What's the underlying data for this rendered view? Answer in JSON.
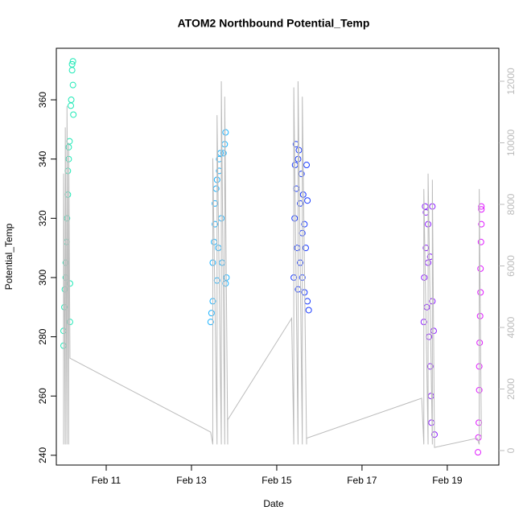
{
  "chart_data": {
    "type": "scatter",
    "title": "ATOM2 Northbound Potential_Temp",
    "x_label": "Date",
    "y_label": "Potential_Temp",
    "xlim": [
      9.83,
      20.21
    ],
    "xticks": [
      {
        "value": 11,
        "label": "Feb 11"
      },
      {
        "value": 13,
        "label": "Feb 13"
      },
      {
        "value": 15,
        "label": "Feb 15"
      },
      {
        "value": 17,
        "label": "Feb 17"
      },
      {
        "value": 19,
        "label": "Feb 19"
      }
    ],
    "ylim": [
      236.7,
      377.4
    ],
    "yticks": [
      240,
      260,
      280,
      300,
      320,
      340,
      360
    ],
    "y2lim": [
      -471,
      13072
    ],
    "y2ticks": [
      0,
      2000,
      4000,
      6000,
      8000,
      10000,
      12000
    ],
    "series": [
      {
        "color": "#1de9b6",
        "x": [
          10.0,
          10.0,
          10.02,
          10.03,
          10.05,
          10.05,
          10.07,
          10.08,
          10.1,
          10.1,
          10.12,
          10.12,
          10.14,
          10.15,
          10.15,
          10.17,
          10.18,
          10.2,
          10.2,
          10.22,
          10.22,
          10.23
        ],
        "values": [
          277,
          282,
          290,
          296,
          300,
          305,
          312,
          320,
          328,
          336,
          340,
          344,
          346,
          298,
          285,
          358,
          360,
          370,
          372,
          373,
          365,
          355
        ]
      },
      {
        "color": "#1ab2ff",
        "x": [
          13.45,
          13.47,
          13.5,
          13.5,
          13.53,
          13.55,
          13.55,
          13.58,
          13.6,
          13.6,
          13.63,
          13.65,
          13.65,
          13.68,
          13.7,
          13.72,
          13.75,
          13.78,
          13.8,
          13.8,
          13.82
        ],
        "values": [
          285,
          288,
          292,
          305,
          312,
          318,
          325,
          330,
          333,
          299,
          310,
          336,
          340,
          342,
          320,
          305,
          342,
          345,
          349,
          298,
          300
        ]
      },
      {
        "color": "#1a3cff",
        "x": [
          15.4,
          15.42,
          15.43,
          15.45,
          15.46,
          15.48,
          15.5,
          15.5,
          15.52,
          15.55,
          15.55,
          15.58,
          15.6,
          15.6,
          15.62,
          15.65,
          15.65,
          15.68,
          15.7,
          15.72,
          15.72,
          15.75
        ],
        "values": [
          300,
          320,
          338,
          345,
          330,
          310,
          296,
          340,
          343,
          325,
          305,
          335,
          315,
          300,
          328,
          318,
          295,
          310,
          338,
          326,
          292,
          289
        ]
      },
      {
        "color": "#8c1aff",
        "x": [
          18.45,
          18.46,
          18.48,
          18.5,
          18.5,
          18.52,
          18.55,
          18.55,
          18.57,
          18.6,
          18.6,
          18.62,
          18.63,
          18.65,
          18.65,
          18.68,
          18.7
        ],
        "values": [
          285,
          300,
          324,
          322,
          310,
          290,
          305,
          318,
          280,
          270,
          307,
          260,
          251,
          324,
          292,
          282,
          247
        ]
      },
      {
        "color": "#e01aff",
        "x": [
          19.72,
          19.73,
          19.74,
          19.75,
          19.75,
          19.76,
          19.77,
          19.78,
          19.78,
          19.79,
          19.8,
          19.8,
          19.8
        ],
        "values": [
          241,
          246,
          251,
          262,
          270,
          278,
          287,
          295,
          303,
          312,
          318,
          323,
          324
        ]
      },
      {
        "color": "#bbbbbb",
        "axis": "y2",
        "x": [
          10.0,
          10.0,
          10.04,
          10.04,
          10.08,
          10.08,
          10.12,
          10.12,
          10.15,
          10.15,
          13.45,
          13.5,
          13.5,
          13.6,
          13.6,
          13.7,
          13.7,
          13.78,
          13.78,
          13.85,
          13.85,
          15.35,
          15.4,
          15.4,
          15.5,
          15.5,
          15.6,
          15.6,
          15.7,
          15.7,
          18.4,
          18.45,
          18.45,
          18.55,
          18.55,
          18.65,
          18.65,
          18.7,
          19.7,
          19.75,
          19.75,
          19.8
        ],
        "values": [
          200,
          9000,
          200,
          10500,
          200,
          11200,
          200,
          10000,
          3000,
          3000,
          600,
          200,
          9500,
          200,
          10900,
          200,
          12000,
          200,
          11500,
          200,
          1000,
          4300,
          200,
          11800,
          200,
          12000,
          200,
          11500,
          200,
          400,
          1700,
          200,
          8500,
          200,
          9000,
          200,
          8800,
          100,
          400,
          200,
          8500,
          400
        ]
      }
    ]
  }
}
